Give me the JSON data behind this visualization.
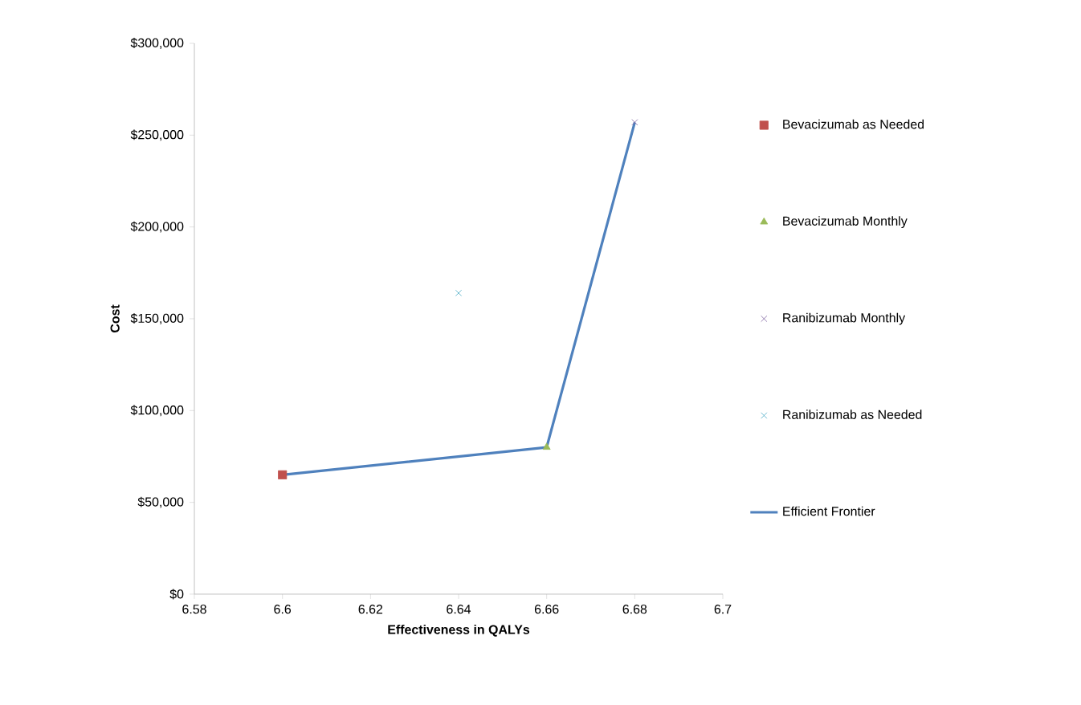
{
  "chart_data": {
    "type": "scatter",
    "xlabel": "Effectiveness in QALYs",
    "ylabel": "Cost",
    "xlim": [
      6.58,
      6.7
    ],
    "xticks": [
      6.58,
      6.6,
      6.62,
      6.64,
      6.66,
      6.68,
      6.7
    ],
    "ylim": [
      0,
      300000
    ],
    "yticks": [
      {
        "value": 0,
        "label": "$0"
      },
      {
        "value": 50000,
        "label": "$50,000"
      },
      {
        "value": 100000,
        "label": "$100,000"
      },
      {
        "value": 150000,
        "label": "$150,000"
      },
      {
        "value": 200000,
        "label": "$200,000"
      },
      {
        "value": 250000,
        "label": "$250,000"
      },
      {
        "value": 300000,
        "label": "$300,000"
      }
    ],
    "legend": "right",
    "series": [
      {
        "name": "Bevacizumab as Needed",
        "color": "#c0504d",
        "marker": "square",
        "x": [
          6.6
        ],
        "values": [
          65000
        ]
      },
      {
        "name": "Bevacizumab Monthly",
        "color": "#9bbb59",
        "marker": "triangle",
        "x": [
          6.66
        ],
        "values": [
          80000
        ]
      },
      {
        "name": "Ranibizumab Monthly",
        "color": "#8064a2",
        "marker": "cross",
        "x": [
          6.68
        ],
        "values": [
          257000
        ]
      },
      {
        "name": "Ranibizumab as Needed",
        "color": "#4bacc6",
        "marker": "cross",
        "x": [
          6.64
        ],
        "values": [
          164000
        ]
      },
      {
        "name": "Efficient Frontier",
        "type": "line",
        "color": "#4f81bd",
        "marker": "none",
        "x": [
          6.6,
          6.66,
          6.68
        ],
        "values": [
          65000,
          80000,
          257000
        ]
      }
    ]
  }
}
